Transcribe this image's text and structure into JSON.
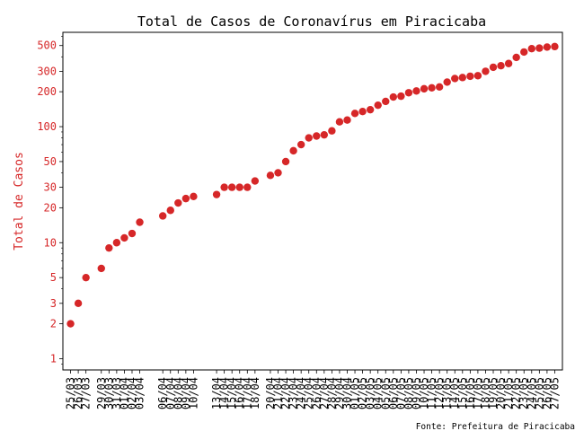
{
  "chart_data": {
    "type": "scatter",
    "title": "Total de Casos de Coronavírus em Piracicaba",
    "xlabel": "",
    "ylabel": "Total de Casos",
    "source_note": "Fonte: Prefeitura de Piracicaba",
    "yscale": "log",
    "ylim": [
      0.8,
      650
    ],
    "xlim": [
      "2020-03-24",
      "2020-05-28"
    ],
    "grid": false,
    "colors": {
      "points": "#d62728",
      "ylabel": "#d62728",
      "yticks": "#d62728",
      "axis": "#000000"
    },
    "yticks": [
      1,
      2,
      3,
      5,
      10,
      20,
      30,
      50,
      100,
      200,
      300,
      500
    ],
    "ytick_labels": [
      "1",
      "2",
      "3",
      "5",
      "10",
      "20",
      "30",
      "50",
      "100",
      "200",
      "300",
      "500"
    ],
    "xticks": [
      {
        "date": "2020-03-25",
        "label": "25/03"
      },
      {
        "date": "2020-03-26",
        "label": "26/03"
      },
      {
        "date": "2020-03-27",
        "label": "27/03"
      },
      {
        "date": "2020-03-29",
        "label": "29/03"
      },
      {
        "date": "2020-03-30",
        "label": "30/03"
      },
      {
        "date": "2020-03-31",
        "label": "31/03"
      },
      {
        "date": "2020-04-01",
        "label": "01/04"
      },
      {
        "date": "2020-04-02",
        "label": "02/04"
      },
      {
        "date": "2020-04-03",
        "label": "03/04"
      },
      {
        "date": "2020-04-06",
        "label": "06/04"
      },
      {
        "date": "2020-04-07",
        "label": "07/04"
      },
      {
        "date": "2020-04-08",
        "label": "08/04"
      },
      {
        "date": "2020-04-09",
        "label": "09/04"
      },
      {
        "date": "2020-04-10",
        "label": "10/04"
      },
      {
        "date": "2020-04-13",
        "label": "13/04"
      },
      {
        "date": "2020-04-14",
        "label": "14/04"
      },
      {
        "date": "2020-04-15",
        "label": "15/04"
      },
      {
        "date": "2020-04-16",
        "label": "16/04"
      },
      {
        "date": "2020-04-17",
        "label": "17/04"
      },
      {
        "date": "2020-04-18",
        "label": "18/04"
      },
      {
        "date": "2020-04-20",
        "label": "20/04"
      },
      {
        "date": "2020-04-21",
        "label": "21/04"
      },
      {
        "date": "2020-04-22",
        "label": "22/04"
      },
      {
        "date": "2020-04-23",
        "label": "23/04"
      },
      {
        "date": "2020-04-24",
        "label": "24/04"
      },
      {
        "date": "2020-04-25",
        "label": "25/04"
      },
      {
        "date": "2020-04-26",
        "label": "26/04"
      },
      {
        "date": "2020-04-27",
        "label": "27/04"
      },
      {
        "date": "2020-04-28",
        "label": "28/04"
      },
      {
        "date": "2020-04-29",
        "label": "29/04"
      },
      {
        "date": "2020-04-30",
        "label": "30/04"
      },
      {
        "date": "2020-05-01",
        "label": "01/05"
      },
      {
        "date": "2020-05-02",
        "label": "02/05"
      },
      {
        "date": "2020-05-03",
        "label": "03/05"
      },
      {
        "date": "2020-05-04",
        "label": "04/05"
      },
      {
        "date": "2020-05-05",
        "label": "05/05"
      },
      {
        "date": "2020-05-06",
        "label": "06/05"
      },
      {
        "date": "2020-05-07",
        "label": "07/05"
      },
      {
        "date": "2020-05-08",
        "label": "08/05"
      },
      {
        "date": "2020-05-09",
        "label": "09/05"
      },
      {
        "date": "2020-05-10",
        "label": "10/05"
      },
      {
        "date": "2020-05-11",
        "label": "11/05"
      },
      {
        "date": "2020-05-12",
        "label": "12/05"
      },
      {
        "date": "2020-05-13",
        "label": "13/05"
      },
      {
        "date": "2020-05-14",
        "label": "14/05"
      },
      {
        "date": "2020-05-15",
        "label": "15/05"
      },
      {
        "date": "2020-05-16",
        "label": "16/05"
      },
      {
        "date": "2020-05-17",
        "label": "17/05"
      },
      {
        "date": "2020-05-18",
        "label": "18/05"
      },
      {
        "date": "2020-05-19",
        "label": "19/05"
      },
      {
        "date": "2020-05-20",
        "label": "20/05"
      },
      {
        "date": "2020-05-21",
        "label": "21/05"
      },
      {
        "date": "2020-05-22",
        "label": "22/05"
      },
      {
        "date": "2020-05-23",
        "label": "23/05"
      },
      {
        "date": "2020-05-24",
        "label": "24/05"
      },
      {
        "date": "2020-05-25",
        "label": "25/05"
      },
      {
        "date": "2020-05-26",
        "label": "26/05"
      },
      {
        "date": "2020-05-27",
        "label": "27/05"
      }
    ],
    "points": [
      {
        "x": "2020-03-25",
        "y": 2
      },
      {
        "x": "2020-03-26",
        "y": 3
      },
      {
        "x": "2020-03-27",
        "y": 5
      },
      {
        "x": "2020-03-29",
        "y": 6
      },
      {
        "x": "2020-03-30",
        "y": 9
      },
      {
        "x": "2020-03-31",
        "y": 10
      },
      {
        "x": "2020-04-01",
        "y": 11
      },
      {
        "x": "2020-04-02",
        "y": 12
      },
      {
        "x": "2020-04-03",
        "y": 15
      },
      {
        "x": "2020-04-06",
        "y": 17
      },
      {
        "x": "2020-04-07",
        "y": 19
      },
      {
        "x": "2020-04-08",
        "y": 22
      },
      {
        "x": "2020-04-09",
        "y": 24
      },
      {
        "x": "2020-04-10",
        "y": 25
      },
      {
        "x": "2020-04-13",
        "y": 26
      },
      {
        "x": "2020-04-14",
        "y": 30
      },
      {
        "x": "2020-04-15",
        "y": 30
      },
      {
        "x": "2020-04-16",
        "y": 30
      },
      {
        "x": "2020-04-17",
        "y": 30
      },
      {
        "x": "2020-04-18",
        "y": 34
      },
      {
        "x": "2020-04-20",
        "y": 38
      },
      {
        "x": "2020-04-21",
        "y": 40
      },
      {
        "x": "2020-04-22",
        "y": 50
      },
      {
        "x": "2020-04-23",
        "y": 62
      },
      {
        "x": "2020-04-24",
        "y": 70
      },
      {
        "x": "2020-04-25",
        "y": 80
      },
      {
        "x": "2020-04-26",
        "y": 83
      },
      {
        "x": "2020-04-27",
        "y": 85
      },
      {
        "x": "2020-04-28",
        "y": 92
      },
      {
        "x": "2020-04-29",
        "y": 110
      },
      {
        "x": "2020-04-30",
        "y": 114
      },
      {
        "x": "2020-05-01",
        "y": 130
      },
      {
        "x": "2020-05-02",
        "y": 135
      },
      {
        "x": "2020-05-03",
        "y": 140
      },
      {
        "x": "2020-05-04",
        "y": 153
      },
      {
        "x": "2020-05-05",
        "y": 165
      },
      {
        "x": "2020-05-06",
        "y": 180
      },
      {
        "x": "2020-05-07",
        "y": 183
      },
      {
        "x": "2020-05-08",
        "y": 196
      },
      {
        "x": "2020-05-09",
        "y": 203
      },
      {
        "x": "2020-05-10",
        "y": 212
      },
      {
        "x": "2020-05-11",
        "y": 216
      },
      {
        "x": "2020-05-12",
        "y": 220
      },
      {
        "x": "2020-05-13",
        "y": 242
      },
      {
        "x": "2020-05-14",
        "y": 260
      },
      {
        "x": "2020-05-15",
        "y": 265
      },
      {
        "x": "2020-05-16",
        "y": 272
      },
      {
        "x": "2020-05-17",
        "y": 275
      },
      {
        "x": "2020-05-18",
        "y": 300
      },
      {
        "x": "2020-05-19",
        "y": 325
      },
      {
        "x": "2020-05-20",
        "y": 335
      },
      {
        "x": "2020-05-21",
        "y": 350
      },
      {
        "x": "2020-05-22",
        "y": 395
      },
      {
        "x": "2020-05-23",
        "y": 440
      },
      {
        "x": "2020-05-24",
        "y": 470
      },
      {
        "x": "2020-05-25",
        "y": 475
      },
      {
        "x": "2020-05-26",
        "y": 485
      },
      {
        "x": "2020-05-27",
        "y": 490
      }
    ]
  }
}
